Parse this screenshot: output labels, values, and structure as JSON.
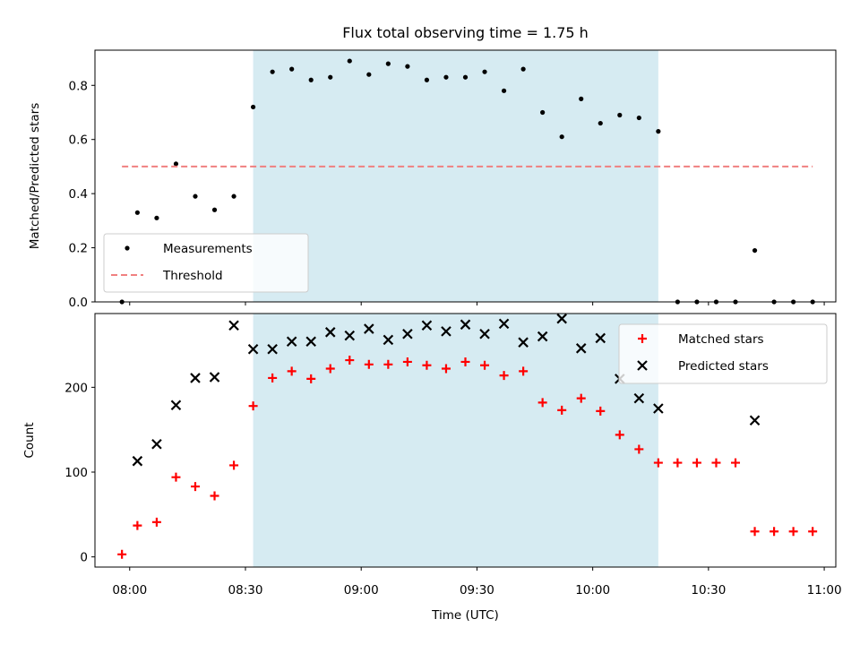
{
  "chart_data": [
    {
      "type": "scatter",
      "title": "Flux total observing time = 1.75 h",
      "xlabel": "",
      "ylabel": "Matched/Predicted stars",
      "xlim": [
        "07:51",
        "11:03"
      ],
      "ylim": [
        0,
        0.93
      ],
      "yticks": [
        "0.0",
        "0.2",
        "0.4",
        "0.6",
        "0.8"
      ],
      "highlight_span": {
        "start": "08:32",
        "end": "10:17"
      },
      "legend_position": "lower-left",
      "series": [
        {
          "name": "Measurements",
          "color": "#000000",
          "marker": "dot",
          "points": [
            [
              "07:58",
              0.0
            ],
            [
              "08:02",
              0.33
            ],
            [
              "08:07",
              0.31
            ],
            [
              "08:12",
              0.51
            ],
            [
              "08:17",
              0.39
            ],
            [
              "08:22",
              0.34
            ],
            [
              "08:27",
              0.39
            ],
            [
              "08:32",
              0.72
            ],
            [
              "08:37",
              0.85
            ],
            [
              "08:42",
              0.86
            ],
            [
              "08:47",
              0.82
            ],
            [
              "08:52",
              0.83
            ],
            [
              "08:57",
              0.89
            ],
            [
              "09:02",
              0.84
            ],
            [
              "09:07",
              0.88
            ],
            [
              "09:12",
              0.87
            ],
            [
              "09:17",
              0.82
            ],
            [
              "09:22",
              0.83
            ],
            [
              "09:27",
              0.83
            ],
            [
              "09:32",
              0.85
            ],
            [
              "09:37",
              0.78
            ],
            [
              "09:42",
              0.86
            ],
            [
              "09:47",
              0.7
            ],
            [
              "09:52",
              0.61
            ],
            [
              "09:57",
              0.75
            ],
            [
              "10:02",
              0.66
            ],
            [
              "10:07",
              0.69
            ],
            [
              "10:12",
              0.68
            ],
            [
              "10:17",
              0.63
            ],
            [
              "10:22",
              0.0
            ],
            [
              "10:27",
              0.0
            ],
            [
              "10:32",
              0.0
            ],
            [
              "10:37",
              0.0
            ],
            [
              "10:42",
              0.19
            ],
            [
              "10:47",
              0.0
            ],
            [
              "10:52",
              0.0
            ],
            [
              "10:57",
              0.0
            ]
          ]
        },
        {
          "name": "Threshold",
          "color": "#f08080",
          "style": "dashed",
          "points": [
            [
              "07:58",
              0.5
            ],
            [
              "10:57",
              0.5
            ]
          ]
        }
      ]
    },
    {
      "type": "scatter",
      "title": "",
      "xlabel": "Time (UTC)",
      "ylabel": "Count",
      "xlim": [
        "07:51",
        "11:03"
      ],
      "ylim": [
        -12,
        287
      ],
      "yticks": [
        "0",
        "100",
        "200"
      ],
      "xticks": [
        "08:00",
        "08:30",
        "09:00",
        "09:30",
        "10:00",
        "10:30",
        "11:00"
      ],
      "highlight_span": {
        "start": "08:32",
        "end": "10:17"
      },
      "legend_position": "upper-right",
      "series": [
        {
          "name": "Matched stars",
          "color": "#ff0000",
          "marker": "plus",
          "points": [
            [
              "07:58",
              3
            ],
            [
              "08:02",
              37
            ],
            [
              "08:07",
              41
            ],
            [
              "08:12",
              94
            ],
            [
              "08:17",
              83
            ],
            [
              "08:22",
              72
            ],
            [
              "08:27",
              108
            ],
            [
              "08:32",
              178
            ],
            [
              "08:37",
              211
            ],
            [
              "08:42",
              219
            ],
            [
              "08:47",
              210
            ],
            [
              "08:52",
              222
            ],
            [
              "08:57",
              232
            ],
            [
              "09:02",
              227
            ],
            [
              "09:07",
              227
            ],
            [
              "09:12",
              230
            ],
            [
              "09:17",
              226
            ],
            [
              "09:22",
              222
            ],
            [
              "09:27",
              230
            ],
            [
              "09:32",
              226
            ],
            [
              "09:37",
              214
            ],
            [
              "09:42",
              219
            ],
            [
              "09:47",
              182
            ],
            [
              "09:52",
              173
            ],
            [
              "09:57",
              187
            ],
            [
              "10:02",
              172
            ],
            [
              "10:07",
              144
            ],
            [
              "10:12",
              127
            ],
            [
              "10:17",
              111
            ],
            [
              "10:22",
              111
            ],
            [
              "10:27",
              111
            ],
            [
              "10:32",
              111
            ],
            [
              "10:37",
              111
            ],
            [
              "10:42",
              30
            ],
            [
              "10:47",
              30
            ],
            [
              "10:52",
              30
            ],
            [
              "10:57",
              30
            ]
          ]
        },
        {
          "name": "Predicted stars",
          "color": "#000000",
          "marker": "x",
          "points": [
            [
              "08:02",
              113
            ],
            [
              "08:07",
              133
            ],
            [
              "08:12",
              179
            ],
            [
              "08:17",
              211
            ],
            [
              "08:22",
              212
            ],
            [
              "08:27",
              273
            ],
            [
              "08:32",
              245
            ],
            [
              "08:37",
              245
            ],
            [
              "08:42",
              254
            ],
            [
              "08:47",
              254
            ],
            [
              "08:52",
              265
            ],
            [
              "08:57",
              261
            ],
            [
              "09:02",
              269
            ],
            [
              "09:07",
              256
            ],
            [
              "09:12",
              263
            ],
            [
              "09:17",
              273
            ],
            [
              "09:22",
              266
            ],
            [
              "09:27",
              274
            ],
            [
              "09:32",
              263
            ],
            [
              "09:37",
              275
            ],
            [
              "09:42",
              253
            ],
            [
              "09:47",
              260
            ],
            [
              "09:52",
              281
            ],
            [
              "09:57",
              246
            ],
            [
              "10:02",
              258
            ],
            [
              "10:07",
              210
            ],
            [
              "10:12",
              187
            ],
            [
              "10:17",
              175
            ],
            [
              "10:42",
              161
            ]
          ]
        }
      ]
    }
  ],
  "colors": {
    "span_fill": "#add8e6",
    "span_opacity": 0.5
  }
}
